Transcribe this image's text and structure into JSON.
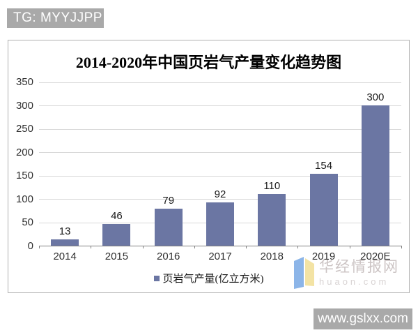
{
  "overlay": {
    "tg_banner": "TG: MYYJJPP",
    "site_banner": "www.gslxx.com"
  },
  "chart_data": {
    "type": "bar",
    "title": "2014-2020年中国页岩气产量变化趋势图",
    "categories": [
      "2014",
      "2015",
      "2016",
      "2017",
      "2018",
      "2019",
      "2020E"
    ],
    "values": [
      13,
      46,
      79,
      92,
      110,
      154,
      300
    ],
    "legend_label": "页岩气产量(亿立方米)",
    "xlabel": "",
    "ylabel": "",
    "ylim": [
      0,
      350
    ],
    "yticks": [
      0,
      50,
      100,
      150,
      200,
      250,
      300,
      350
    ],
    "grid": true,
    "legend_position": "bottom",
    "data_labels": true,
    "bar_color": "#6b76a3"
  },
  "watermark": {
    "name": "华经情报网",
    "domain": "huaon.com",
    "logo_blue": "#8cb5e8",
    "logo_yellow": "#f3e3a4"
  },
  "colors": {
    "banner_bg": "#a9a9a9",
    "grid": "#d9d9d9",
    "axis": "#7f7f7f",
    "frame_border": "#b0b0b0"
  }
}
